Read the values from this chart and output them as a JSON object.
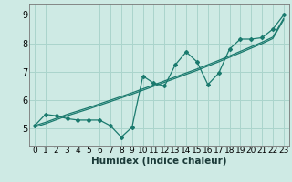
{
  "title": "",
  "xlabel": "Humidex (Indice chaleur)",
  "ylabel": "",
  "bg_color": "#ceeae4",
  "grid_color": "#aad4cc",
  "line_color": "#1a7a6e",
  "x_data": [
    0,
    1,
    2,
    3,
    4,
    5,
    6,
    7,
    8,
    9,
    10,
    11,
    12,
    13,
    14,
    15,
    16,
    17,
    18,
    19,
    20,
    21,
    22,
    23
  ],
  "y_main": [
    5.1,
    5.5,
    5.45,
    5.35,
    5.3,
    5.3,
    5.3,
    5.1,
    4.7,
    5.05,
    6.85,
    6.6,
    6.5,
    7.25,
    7.7,
    7.35,
    6.55,
    6.95,
    7.8,
    8.15,
    8.15,
    8.2,
    8.5,
    9.0
  ],
  "y_trend1": [
    5.1,
    5.22,
    5.36,
    5.5,
    5.62,
    5.74,
    5.87,
    6.0,
    6.13,
    6.26,
    6.4,
    6.54,
    6.68,
    6.82,
    6.96,
    7.1,
    7.25,
    7.4,
    7.56,
    7.72,
    7.88,
    8.04,
    8.22,
    8.88
  ],
  "y_trend2": [
    5.05,
    5.17,
    5.31,
    5.45,
    5.57,
    5.69,
    5.82,
    5.95,
    6.08,
    6.21,
    6.35,
    6.49,
    6.63,
    6.77,
    6.91,
    7.05,
    7.2,
    7.35,
    7.51,
    7.67,
    7.83,
    7.99,
    8.17,
    8.83
  ],
  "xlim": [
    -0.5,
    23.5
  ],
  "ylim": [
    4.4,
    9.4
  ],
  "yticks": [
    5,
    6,
    7,
    8,
    9
  ],
  "xticks": [
    0,
    1,
    2,
    3,
    4,
    5,
    6,
    7,
    8,
    9,
    10,
    11,
    12,
    13,
    14,
    15,
    16,
    17,
    18,
    19,
    20,
    21,
    22,
    23
  ],
  "marker": "D",
  "marker_size": 2.0,
  "linewidth": 0.9,
  "xlabel_fontsize": 7.5,
  "tick_fontsize": 6.5
}
